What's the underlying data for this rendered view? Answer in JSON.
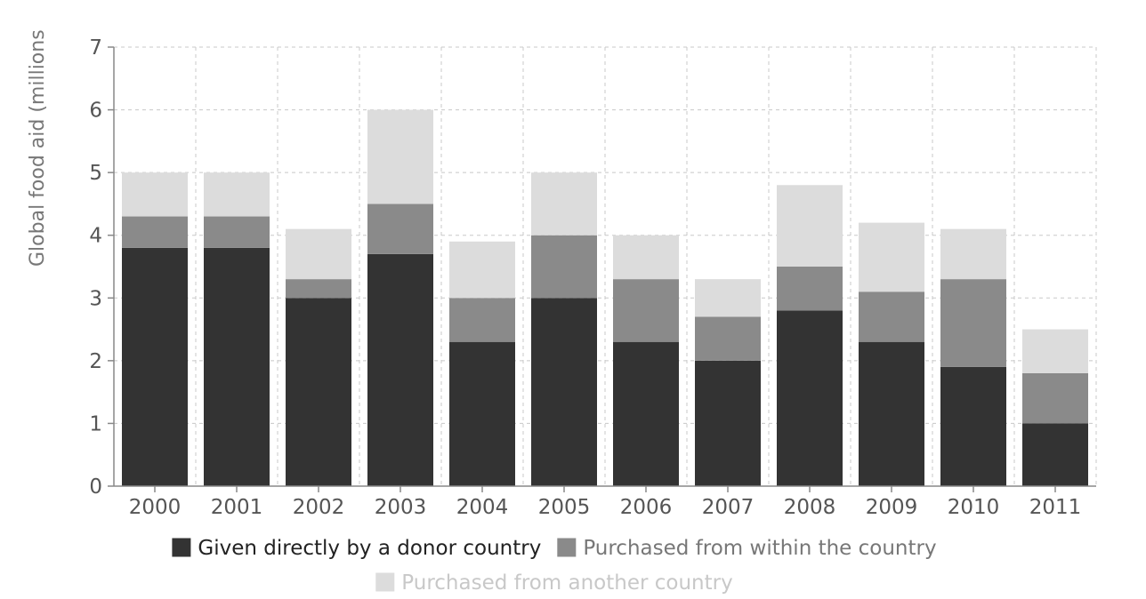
{
  "chart_data": {
    "type": "bar",
    "stacked": true,
    "title": "",
    "xlabel": "",
    "ylabel": "Global food aid (millions",
    "ylim": [
      0,
      7
    ],
    "yticks": [
      "0",
      "1",
      "2",
      "3",
      "4",
      "5",
      "6",
      "7"
    ],
    "grid": true,
    "legend_position": "bottom",
    "categories": [
      "2000",
      "2001",
      "2002",
      "2003",
      "2004",
      "2005",
      "2006",
      "2007",
      "2008",
      "2009",
      "2010",
      "2011"
    ],
    "series": [
      {
        "name": "Given directly by a donor country",
        "color": "#333333",
        "text_color": "#222222",
        "values": [
          3.8,
          3.8,
          3.0,
          3.7,
          2.3,
          3.0,
          2.3,
          2.0,
          2.8,
          2.3,
          1.9,
          1.0
        ]
      },
      {
        "name": "Purchased from within the country",
        "color": "#8a8a8a",
        "text_color": "#777777",
        "values": [
          0.5,
          0.5,
          0.3,
          0.8,
          0.7,
          1.0,
          1.0,
          0.7,
          0.7,
          0.8,
          1.4,
          0.8
        ]
      },
      {
        "name": "Purchased from another country",
        "color": "#dcdcdc",
        "text_color": "#c8c8c8",
        "values": [
          0.7,
          0.7,
          0.8,
          1.5,
          0.9,
          1.0,
          0.7,
          0.6,
          1.3,
          1.1,
          0.8,
          0.7
        ]
      }
    ]
  }
}
